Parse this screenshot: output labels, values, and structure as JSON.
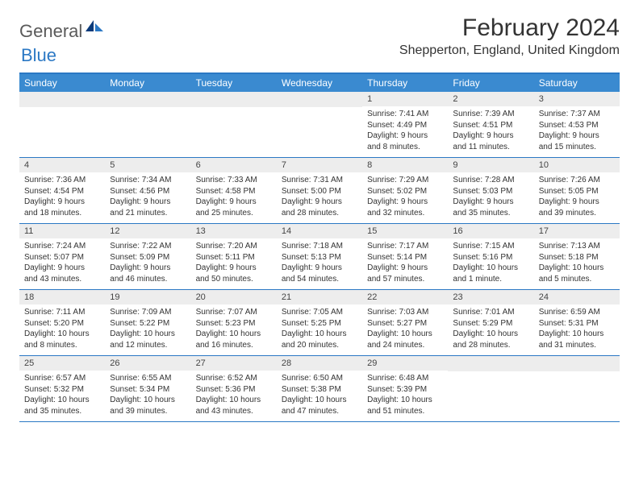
{
  "logo": {
    "part1": "General",
    "part2": "Blue"
  },
  "title": "February 2024",
  "location": "Shepperton, England, United Kingdom",
  "dayNames": [
    "Sunday",
    "Monday",
    "Tuesday",
    "Wednesday",
    "Thursday",
    "Friday",
    "Saturday"
  ],
  "colors": {
    "header_bg": "#3a8ad0",
    "border": "#2b78c4",
    "date_bg": "#ededed",
    "logo_gray": "#5a5a5a",
    "logo_blue": "#2b78c4"
  },
  "weeks": [
    [
      {
        "date": "",
        "sunrise": "",
        "sunset": "",
        "daylight": ""
      },
      {
        "date": "",
        "sunrise": "",
        "sunset": "",
        "daylight": ""
      },
      {
        "date": "",
        "sunrise": "",
        "sunset": "",
        "daylight": ""
      },
      {
        "date": "",
        "sunrise": "",
        "sunset": "",
        "daylight": ""
      },
      {
        "date": "1",
        "sunrise": "Sunrise: 7:41 AM",
        "sunset": "Sunset: 4:49 PM",
        "daylight": "Daylight: 9 hours and 8 minutes."
      },
      {
        "date": "2",
        "sunrise": "Sunrise: 7:39 AM",
        "sunset": "Sunset: 4:51 PM",
        "daylight": "Daylight: 9 hours and 11 minutes."
      },
      {
        "date": "3",
        "sunrise": "Sunrise: 7:37 AM",
        "sunset": "Sunset: 4:53 PM",
        "daylight": "Daylight: 9 hours and 15 minutes."
      }
    ],
    [
      {
        "date": "4",
        "sunrise": "Sunrise: 7:36 AM",
        "sunset": "Sunset: 4:54 PM",
        "daylight": "Daylight: 9 hours and 18 minutes."
      },
      {
        "date": "5",
        "sunrise": "Sunrise: 7:34 AM",
        "sunset": "Sunset: 4:56 PM",
        "daylight": "Daylight: 9 hours and 21 minutes."
      },
      {
        "date": "6",
        "sunrise": "Sunrise: 7:33 AM",
        "sunset": "Sunset: 4:58 PM",
        "daylight": "Daylight: 9 hours and 25 minutes."
      },
      {
        "date": "7",
        "sunrise": "Sunrise: 7:31 AM",
        "sunset": "Sunset: 5:00 PM",
        "daylight": "Daylight: 9 hours and 28 minutes."
      },
      {
        "date": "8",
        "sunrise": "Sunrise: 7:29 AM",
        "sunset": "Sunset: 5:02 PM",
        "daylight": "Daylight: 9 hours and 32 minutes."
      },
      {
        "date": "9",
        "sunrise": "Sunrise: 7:28 AM",
        "sunset": "Sunset: 5:03 PM",
        "daylight": "Daylight: 9 hours and 35 minutes."
      },
      {
        "date": "10",
        "sunrise": "Sunrise: 7:26 AM",
        "sunset": "Sunset: 5:05 PM",
        "daylight": "Daylight: 9 hours and 39 minutes."
      }
    ],
    [
      {
        "date": "11",
        "sunrise": "Sunrise: 7:24 AM",
        "sunset": "Sunset: 5:07 PM",
        "daylight": "Daylight: 9 hours and 43 minutes."
      },
      {
        "date": "12",
        "sunrise": "Sunrise: 7:22 AM",
        "sunset": "Sunset: 5:09 PM",
        "daylight": "Daylight: 9 hours and 46 minutes."
      },
      {
        "date": "13",
        "sunrise": "Sunrise: 7:20 AM",
        "sunset": "Sunset: 5:11 PM",
        "daylight": "Daylight: 9 hours and 50 minutes."
      },
      {
        "date": "14",
        "sunrise": "Sunrise: 7:18 AM",
        "sunset": "Sunset: 5:13 PM",
        "daylight": "Daylight: 9 hours and 54 minutes."
      },
      {
        "date": "15",
        "sunrise": "Sunrise: 7:17 AM",
        "sunset": "Sunset: 5:14 PM",
        "daylight": "Daylight: 9 hours and 57 minutes."
      },
      {
        "date": "16",
        "sunrise": "Sunrise: 7:15 AM",
        "sunset": "Sunset: 5:16 PM",
        "daylight": "Daylight: 10 hours and 1 minute."
      },
      {
        "date": "17",
        "sunrise": "Sunrise: 7:13 AM",
        "sunset": "Sunset: 5:18 PM",
        "daylight": "Daylight: 10 hours and 5 minutes."
      }
    ],
    [
      {
        "date": "18",
        "sunrise": "Sunrise: 7:11 AM",
        "sunset": "Sunset: 5:20 PM",
        "daylight": "Daylight: 10 hours and 8 minutes."
      },
      {
        "date": "19",
        "sunrise": "Sunrise: 7:09 AM",
        "sunset": "Sunset: 5:22 PM",
        "daylight": "Daylight: 10 hours and 12 minutes."
      },
      {
        "date": "20",
        "sunrise": "Sunrise: 7:07 AM",
        "sunset": "Sunset: 5:23 PM",
        "daylight": "Daylight: 10 hours and 16 minutes."
      },
      {
        "date": "21",
        "sunrise": "Sunrise: 7:05 AM",
        "sunset": "Sunset: 5:25 PM",
        "daylight": "Daylight: 10 hours and 20 minutes."
      },
      {
        "date": "22",
        "sunrise": "Sunrise: 7:03 AM",
        "sunset": "Sunset: 5:27 PM",
        "daylight": "Daylight: 10 hours and 24 minutes."
      },
      {
        "date": "23",
        "sunrise": "Sunrise: 7:01 AM",
        "sunset": "Sunset: 5:29 PM",
        "daylight": "Daylight: 10 hours and 28 minutes."
      },
      {
        "date": "24",
        "sunrise": "Sunrise: 6:59 AM",
        "sunset": "Sunset: 5:31 PM",
        "daylight": "Daylight: 10 hours and 31 minutes."
      }
    ],
    [
      {
        "date": "25",
        "sunrise": "Sunrise: 6:57 AM",
        "sunset": "Sunset: 5:32 PM",
        "daylight": "Daylight: 10 hours and 35 minutes."
      },
      {
        "date": "26",
        "sunrise": "Sunrise: 6:55 AM",
        "sunset": "Sunset: 5:34 PM",
        "daylight": "Daylight: 10 hours and 39 minutes."
      },
      {
        "date": "27",
        "sunrise": "Sunrise: 6:52 AM",
        "sunset": "Sunset: 5:36 PM",
        "daylight": "Daylight: 10 hours and 43 minutes."
      },
      {
        "date": "28",
        "sunrise": "Sunrise: 6:50 AM",
        "sunset": "Sunset: 5:38 PM",
        "daylight": "Daylight: 10 hours and 47 minutes."
      },
      {
        "date": "29",
        "sunrise": "Sunrise: 6:48 AM",
        "sunset": "Sunset: 5:39 PM",
        "daylight": "Daylight: 10 hours and 51 minutes."
      },
      {
        "date": "",
        "sunrise": "",
        "sunset": "",
        "daylight": ""
      },
      {
        "date": "",
        "sunrise": "",
        "sunset": "",
        "daylight": ""
      }
    ]
  ]
}
